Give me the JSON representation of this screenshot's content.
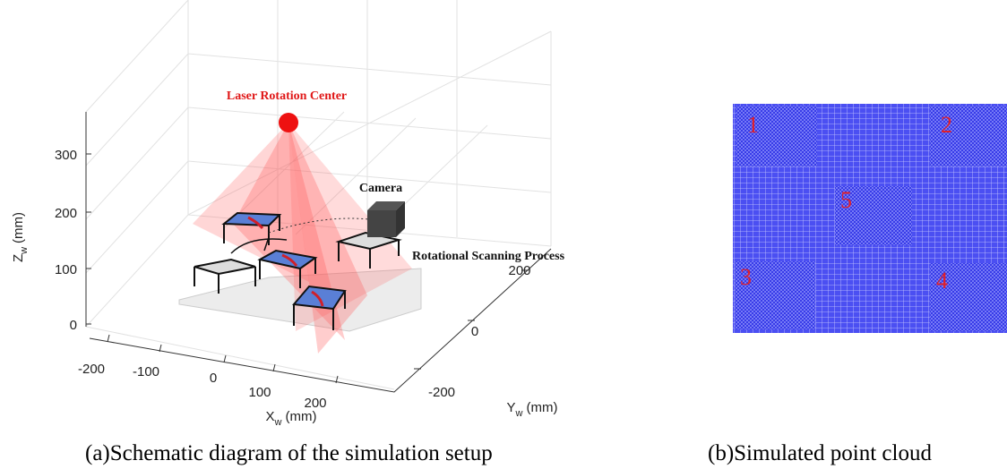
{
  "left_panel": {
    "labels": {
      "laser_center": "Laser Rotation Center",
      "camera": "Camera",
      "scanning": "Rotational Scanning Process"
    },
    "z_axis": {
      "label": "Z",
      "subscript": "w",
      "unit": "(mm)",
      "ticks": [
        "0",
        "100",
        "200",
        "300"
      ]
    },
    "x_axis": {
      "label": "X",
      "subscript": "w",
      "unit": "(mm)",
      "ticks": [
        "-200",
        "-100",
        "0",
        "100",
        "200"
      ]
    },
    "y_axis": {
      "label": "Y",
      "subscript": "w",
      "unit": "(mm)",
      "ticks": [
        "-200",
        "0",
        "200"
      ]
    }
  },
  "right_panel": {
    "region_labels": [
      "1",
      "2",
      "3",
      "4",
      "5"
    ]
  },
  "captions": [
    "(a)Schematic diagram of the simulation setup",
    "(b)Simulated point cloud"
  ]
}
